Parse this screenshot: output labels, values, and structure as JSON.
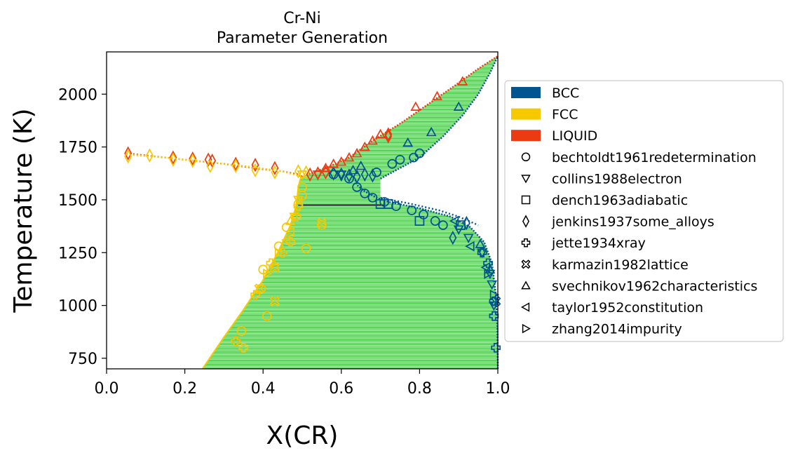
{
  "chart_data": {
    "type": "scatter",
    "title": "Cr-Ni",
    "subtitle": "Parameter Generation",
    "xlabel": "X(CR)",
    "ylabel": "Temperature (K)",
    "xlim": [
      0.0,
      1.0
    ],
    "ylim": [
      700,
      2200
    ],
    "xticks": [
      "0.0",
      "0.2",
      "0.4",
      "0.6",
      "0.8",
      "1.0"
    ],
    "yticks": [
      "750",
      "1000",
      "1250",
      "1500",
      "1750",
      "2000"
    ],
    "legend_position": "right, outside plot",
    "phases": [
      {
        "name": "BCC",
        "color": "#00548f"
      },
      {
        "name": "FCC",
        "color": "#f5c800"
      },
      {
        "name": "LIQUID",
        "color": "#eb3b12"
      }
    ],
    "tie_line_color": "#33cc33",
    "phase_boundaries": {
      "fcc_solvus": [
        [
          0.245,
          700
        ],
        [
          0.3,
          850
        ],
        [
          0.35,
          980
        ],
        [
          0.4,
          1120
        ],
        [
          0.44,
          1260
        ],
        [
          0.47,
          1380
        ],
        [
          0.485,
          1475
        ],
        [
          0.49,
          1560
        ],
        [
          0.497,
          1610
        ]
      ],
      "bcc_solvus": [
        [
          1.0,
          700
        ],
        [
          0.999,
          900
        ],
        [
          0.995,
          1050
        ],
        [
          0.985,
          1200
        ],
        [
          0.965,
          1300
        ],
        [
          0.93,
          1370
        ],
        [
          0.88,
          1420
        ],
        [
          0.8,
          1460
        ],
        [
          0.72,
          1490
        ],
        [
          0.69,
          1510
        ],
        [
          0.66,
          1540
        ],
        [
          0.64,
          1570
        ],
        [
          0.635,
          1600
        ]
      ],
      "bcc_solidus": [
        [
          0.7,
          1600
        ],
        [
          0.74,
          1640
        ],
        [
          0.8,
          1700
        ],
        [
          0.86,
          1800
        ],
        [
          0.91,
          1900
        ],
        [
          0.95,
          2000
        ],
        [
          0.98,
          2100
        ],
        [
          1.0,
          2180
        ]
      ],
      "liquidus_right": [
        [
          0.497,
          1610
        ],
        [
          0.56,
          1650
        ],
        [
          0.62,
          1700
        ],
        [
          0.68,
          1780
        ],
        [
          0.75,
          1860
        ],
        [
          0.82,
          1950
        ],
        [
          0.89,
          2040
        ],
        [
          0.95,
          2120
        ],
        [
          1.0,
          2180
        ]
      ],
      "liquidus_left": [
        [
          0.05,
          1720
        ],
        [
          0.1,
          1710
        ],
        [
          0.2,
          1690
        ],
        [
          0.3,
          1670
        ],
        [
          0.4,
          1645
        ],
        [
          0.45,
          1635
        ],
        [
          0.49,
          1620
        ],
        [
          0.497,
          1610
        ]
      ],
      "fcc_solidus_left": [
        [
          0.05,
          1715
        ],
        [
          0.15,
          1700
        ],
        [
          0.25,
          1680
        ],
        [
          0.35,
          1660
        ],
        [
          0.45,
          1635
        ],
        [
          0.497,
          1610
        ]
      ],
      "bcc_dotted_right": [
        [
          0.7,
          1510
        ],
        [
          0.78,
          1480
        ],
        [
          0.85,
          1450
        ],
        [
          0.9,
          1420
        ],
        [
          0.95,
          1380
        ]
      ],
      "eutectoid_line": [
        [
          0.49,
          1475
        ],
        [
          0.71,
          1475
        ]
      ]
    },
    "legend": [
      {
        "label": "BCC",
        "kind": "patch",
        "color": "#00548f"
      },
      {
        "label": "FCC",
        "kind": "patch",
        "color": "#f5c800"
      },
      {
        "label": "LIQUID",
        "kind": "patch",
        "color": "#eb3b12"
      },
      {
        "label": "bechtoldt1961redetermination",
        "kind": "marker",
        "marker": "circle"
      },
      {
        "label": "collins1988electron",
        "kind": "marker",
        "marker": "triangle-down"
      },
      {
        "label": "dench1963adiabatic",
        "kind": "marker",
        "marker": "square"
      },
      {
        "label": "jenkins1937some_alloys",
        "kind": "marker",
        "marker": "diamond"
      },
      {
        "label": "jette1934xray",
        "kind": "marker",
        "marker": "plus"
      },
      {
        "label": "karmazin1982lattice",
        "kind": "marker",
        "marker": "x-cross"
      },
      {
        "label": "svechnikov1962characteristics",
        "kind": "marker",
        "marker": "triangle-up"
      },
      {
        "label": "taylor1952constitution",
        "kind": "marker",
        "marker": "triangle-left"
      },
      {
        "label": "zhang2014impurity",
        "kind": "marker",
        "marker": "triangle-right"
      }
    ],
    "points": [
      {
        "x": 0.055,
        "y": 1720,
        "phase": "LIQUID",
        "marker": "diamond"
      },
      {
        "x": 0.055,
        "y": 1705,
        "phase": "FCC",
        "marker": "diamond"
      },
      {
        "x": 0.11,
        "y": 1710,
        "phase": "FCC",
        "marker": "diamond"
      },
      {
        "x": 0.17,
        "y": 1700,
        "phase": "LIQUID",
        "marker": "diamond"
      },
      {
        "x": 0.17,
        "y": 1690,
        "phase": "FCC",
        "marker": "diamond"
      },
      {
        "x": 0.22,
        "y": 1695,
        "phase": "LIQUID",
        "marker": "diamond"
      },
      {
        "x": 0.22,
        "y": 1685,
        "phase": "FCC",
        "marker": "diamond"
      },
      {
        "x": 0.26,
        "y": 1690,
        "phase": "LIQUID",
        "marker": "diamond"
      },
      {
        "x": 0.27,
        "y": 1685,
        "phase": "LIQUID",
        "marker": "diamond"
      },
      {
        "x": 0.265,
        "y": 1660,
        "phase": "FCC",
        "marker": "diamond"
      },
      {
        "x": 0.33,
        "y": 1670,
        "phase": "LIQUID",
        "marker": "diamond"
      },
      {
        "x": 0.33,
        "y": 1660,
        "phase": "FCC",
        "marker": "diamond"
      },
      {
        "x": 0.38,
        "y": 1665,
        "phase": "LIQUID",
        "marker": "diamond"
      },
      {
        "x": 0.38,
        "y": 1640,
        "phase": "FCC",
        "marker": "diamond"
      },
      {
        "x": 0.43,
        "y": 1650,
        "phase": "LIQUID",
        "marker": "diamond"
      },
      {
        "x": 0.43,
        "y": 1630,
        "phase": "FCC",
        "marker": "diamond"
      },
      {
        "x": 0.49,
        "y": 1635,
        "phase": "FCC",
        "marker": "diamond"
      },
      {
        "x": 0.51,
        "y": 1630,
        "phase": "FCC",
        "marker": "diamond"
      },
      {
        "x": 0.52,
        "y": 1620,
        "phase": "LIQUID",
        "marker": "diamond"
      },
      {
        "x": 0.54,
        "y": 1625,
        "phase": "LIQUID",
        "marker": "diamond"
      },
      {
        "x": 0.56,
        "y": 1630,
        "phase": "LIQUID",
        "marker": "diamond"
      },
      {
        "x": 0.58,
        "y": 1625,
        "phase": "BCC",
        "marker": "diamond"
      },
      {
        "x": 0.6,
        "y": 1620,
        "phase": "BCC",
        "marker": "diamond"
      },
      {
        "x": 0.62,
        "y": 1615,
        "phase": "BCC",
        "marker": "diamond"
      },
      {
        "x": 0.64,
        "y": 1610,
        "phase": "BCC",
        "marker": "diamond"
      },
      {
        "x": 0.66,
        "y": 1620,
        "phase": "BCC",
        "marker": "diamond"
      },
      {
        "x": 0.68,
        "y": 1615,
        "phase": "BCC",
        "marker": "diamond"
      },
      {
        "x": 0.72,
        "y": 1800,
        "phase": "LIQUID",
        "marker": "diamond"
      },
      {
        "x": 0.72,
        "y": 1810,
        "phase": "LIQUID",
        "marker": "diamond"
      },
      {
        "x": 0.885,
        "y": 1320,
        "phase": "BCC",
        "marker": "diamond"
      },
      {
        "x": 0.92,
        "y": 1390,
        "phase": "BCC",
        "marker": "diamond"
      },
      {
        "x": 0.69,
        "y": 1630,
        "phase": "BCC",
        "marker": "circle"
      },
      {
        "x": 0.73,
        "y": 1670,
        "phase": "BCC",
        "marker": "circle"
      },
      {
        "x": 0.75,
        "y": 1690,
        "phase": "BCC",
        "marker": "circle"
      },
      {
        "x": 0.785,
        "y": 1700,
        "phase": "BCC",
        "marker": "circle"
      },
      {
        "x": 0.8,
        "y": 1720,
        "phase": "BCC",
        "marker": "circle"
      },
      {
        "x": 0.58,
        "y": 1620,
        "phase": "BCC",
        "marker": "circle"
      },
      {
        "x": 0.62,
        "y": 1600,
        "phase": "BCC",
        "marker": "circle"
      },
      {
        "x": 0.64,
        "y": 1560,
        "phase": "BCC",
        "marker": "circle"
      },
      {
        "x": 0.66,
        "y": 1530,
        "phase": "BCC",
        "marker": "circle"
      },
      {
        "x": 0.68,
        "y": 1510,
        "phase": "BCC",
        "marker": "circle"
      },
      {
        "x": 0.71,
        "y": 1490,
        "phase": "BCC",
        "marker": "circle"
      },
      {
        "x": 0.74,
        "y": 1470,
        "phase": "BCC",
        "marker": "circle"
      },
      {
        "x": 0.78,
        "y": 1450,
        "phase": "BCC",
        "marker": "circle"
      },
      {
        "x": 0.81,
        "y": 1430,
        "phase": "BCC",
        "marker": "circle"
      },
      {
        "x": 0.84,
        "y": 1400,
        "phase": "BCC",
        "marker": "circle"
      },
      {
        "x": 0.86,
        "y": 1380,
        "phase": "BCC",
        "marker": "circle"
      },
      {
        "x": 0.5,
        "y": 1560,
        "phase": "FCC",
        "marker": "circle"
      },
      {
        "x": 0.5,
        "y": 1520,
        "phase": "FCC",
        "marker": "circle"
      },
      {
        "x": 0.49,
        "y": 1480,
        "phase": "FCC",
        "marker": "circle"
      },
      {
        "x": 0.46,
        "y": 1370,
        "phase": "FCC",
        "marker": "circle"
      },
      {
        "x": 0.44,
        "y": 1280,
        "phase": "FCC",
        "marker": "circle"
      },
      {
        "x": 0.4,
        "y": 1170,
        "phase": "FCC",
        "marker": "circle"
      },
      {
        "x": 0.395,
        "y": 1080,
        "phase": "FCC",
        "marker": "circle"
      },
      {
        "x": 0.345,
        "y": 880,
        "phase": "FCC",
        "marker": "circle"
      },
      {
        "x": 0.41,
        "y": 950,
        "phase": "FCC",
        "marker": "circle"
      },
      {
        "x": 0.51,
        "y": 1270,
        "phase": "FCC",
        "marker": "circle"
      },
      {
        "x": 0.55,
        "y": 1380,
        "phase": "FCC",
        "marker": "circle"
      },
      {
        "x": 0.5,
        "y": 1620,
        "phase": "FCC",
        "marker": "triangle-down"
      },
      {
        "x": 0.54,
        "y": 1620,
        "phase": "LIQUID",
        "marker": "triangle-down"
      },
      {
        "x": 0.6,
        "y": 1620,
        "phase": "BCC",
        "marker": "triangle-down"
      },
      {
        "x": 0.9,
        "y": 1360,
        "phase": "BCC",
        "marker": "triangle-down"
      },
      {
        "x": 0.925,
        "y": 1320,
        "phase": "BCC",
        "marker": "triangle-down"
      },
      {
        "x": 0.96,
        "y": 1250,
        "phase": "BCC",
        "marker": "triangle-down"
      },
      {
        "x": 0.98,
        "y": 1150,
        "phase": "BCC",
        "marker": "triangle-down"
      },
      {
        "x": 0.985,
        "y": 1100,
        "phase": "BCC",
        "marker": "triangle-down"
      },
      {
        "x": 0.99,
        "y": 1000,
        "phase": "BCC",
        "marker": "triangle-down"
      },
      {
        "x": 0.49,
        "y": 1500,
        "phase": "FCC",
        "marker": "triangle-down"
      },
      {
        "x": 0.48,
        "y": 1420,
        "phase": "FCC",
        "marker": "triangle-down"
      },
      {
        "x": 0.72,
        "y": 1480,
        "phase": "BCC",
        "marker": "square"
      },
      {
        "x": 0.7,
        "y": 1480,
        "phase": "BCC",
        "marker": "square"
      },
      {
        "x": 0.8,
        "y": 1400,
        "phase": "BCC",
        "marker": "square"
      },
      {
        "x": 0.905,
        "y": 1380,
        "phase": "BCC",
        "marker": "square"
      },
      {
        "x": 0.49,
        "y": 1470,
        "phase": "FCC",
        "marker": "plus"
      },
      {
        "x": 0.485,
        "y": 1420,
        "phase": "FCC",
        "marker": "plus"
      },
      {
        "x": 0.47,
        "y": 1300,
        "phase": "FCC",
        "marker": "plus"
      },
      {
        "x": 0.45,
        "y": 1250,
        "phase": "FCC",
        "marker": "plus"
      },
      {
        "x": 0.42,
        "y": 1200,
        "phase": "FCC",
        "marker": "plus"
      },
      {
        "x": 0.38,
        "y": 1050,
        "phase": "FCC",
        "marker": "plus"
      },
      {
        "x": 0.33,
        "y": 830,
        "phase": "FCC",
        "marker": "plus"
      },
      {
        "x": 0.35,
        "y": 800,
        "phase": "FCC",
        "marker": "plus"
      },
      {
        "x": 0.975,
        "y": 1200,
        "phase": "BCC",
        "marker": "plus"
      },
      {
        "x": 0.99,
        "y": 1020,
        "phase": "BCC",
        "marker": "plus"
      },
      {
        "x": 0.99,
        "y": 950,
        "phase": "BCC",
        "marker": "plus"
      },
      {
        "x": 0.995,
        "y": 800,
        "phase": "BCC",
        "marker": "plus"
      },
      {
        "x": 0.96,
        "y": 1250,
        "phase": "BCC",
        "marker": "plus"
      },
      {
        "x": 0.43,
        "y": 1180,
        "phase": "FCC",
        "marker": "x-cross"
      },
      {
        "x": 0.43,
        "y": 1020,
        "phase": "FCC",
        "marker": "x-cross"
      },
      {
        "x": 0.39,
        "y": 1080,
        "phase": "FCC",
        "marker": "x-cross"
      },
      {
        "x": 0.55,
        "y": 1390,
        "phase": "FCC",
        "marker": "x-cross"
      },
      {
        "x": 0.43,
        "y": 1180,
        "phase": "FCC",
        "marker": "x-cross"
      },
      {
        "x": 0.995,
        "y": 1020,
        "phase": "BCC",
        "marker": "x-cross"
      },
      {
        "x": 0.77,
        "y": 1770,
        "phase": "BCC",
        "marker": "triangle-up"
      },
      {
        "x": 0.83,
        "y": 1820,
        "phase": "BCC",
        "marker": "triangle-up"
      },
      {
        "x": 0.9,
        "y": 1940,
        "phase": "BCC",
        "marker": "triangle-up"
      },
      {
        "x": 0.65,
        "y": 1660,
        "phase": "BCC",
        "marker": "triangle-up"
      },
      {
        "x": 0.63,
        "y": 1640,
        "phase": "BCC",
        "marker": "triangle-up"
      },
      {
        "x": 0.66,
        "y": 1750,
        "phase": "LIQUID",
        "marker": "triangle-up"
      },
      {
        "x": 0.68,
        "y": 1780,
        "phase": "LIQUID",
        "marker": "triangle-up"
      },
      {
        "x": 0.7,
        "y": 1810,
        "phase": "LIQUID",
        "marker": "triangle-up"
      },
      {
        "x": 0.79,
        "y": 1940,
        "phase": "LIQUID",
        "marker": "triangle-up"
      },
      {
        "x": 0.845,
        "y": 1990,
        "phase": "LIQUID",
        "marker": "triangle-up"
      },
      {
        "x": 0.91,
        "y": 2060,
        "phase": "LIQUID",
        "marker": "triangle-up"
      },
      {
        "x": 0.62,
        "y": 1700,
        "phase": "LIQUID",
        "marker": "triangle-up"
      },
      {
        "x": 0.64,
        "y": 1720,
        "phase": "LIQUID",
        "marker": "triangle-up"
      },
      {
        "x": 0.58,
        "y": 1670,
        "phase": "LIQUID",
        "marker": "triangle-up"
      },
      {
        "x": 0.6,
        "y": 1680,
        "phase": "LIQUID",
        "marker": "triangle-up"
      },
      {
        "x": 0.56,
        "y": 1650,
        "phase": "LIQUID",
        "marker": "triangle-up"
      },
      {
        "x": 0.47,
        "y": 1400,
        "phase": "FCC",
        "marker": "triangle-up"
      },
      {
        "x": 0.955,
        "y": 1290,
        "phase": "BCC",
        "marker": "triangle-up"
      },
      {
        "x": 0.98,
        "y": 1170,
        "phase": "BCC",
        "marker": "triangle-up"
      },
      {
        "x": 0.89,
        "y": 1400,
        "phase": "BCC",
        "marker": "triangle-left"
      },
      {
        "x": 0.93,
        "y": 1280,
        "phase": "BCC",
        "marker": "triangle-left"
      },
      {
        "x": 0.97,
        "y": 1180,
        "phase": "BCC",
        "marker": "triangle-left"
      },
      {
        "x": 0.47,
        "y": 1350,
        "phase": "FCC",
        "marker": "triangle-left"
      },
      {
        "x": 0.46,
        "y": 1310,
        "phase": "FCC",
        "marker": "triangle-left"
      },
      {
        "x": 0.44,
        "y": 1250,
        "phase": "FCC",
        "marker": "triangle-right"
      },
      {
        "x": 0.41,
        "y": 1150,
        "phase": "FCC",
        "marker": "triangle-right"
      },
      {
        "x": 0.975,
        "y": 1150,
        "phase": "BCC",
        "marker": "triangle-right"
      },
      {
        "x": 0.99,
        "y": 1050,
        "phase": "BCC",
        "marker": "triangle-right"
      }
    ]
  }
}
